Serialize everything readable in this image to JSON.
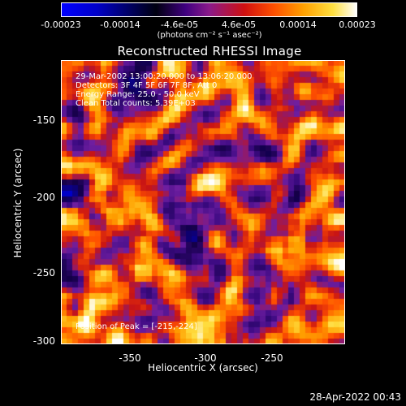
{
  "colorbar": {
    "ticks": [
      "-0.00023",
      "-0.00014",
      "-4.6e-05",
      "4.6e-05",
      "0.00014",
      "0.00023"
    ],
    "unit_label": "(photons cm⁻² s⁻¹ asec⁻²)"
  },
  "info": {
    "time_range": "29-Mar-2002 13:00:20.000 to 13:06:20.000",
    "detectors": "Detectors: 3F 4F 5F 6F 7F 8F, Att 0",
    "energy_range": "Energy Range: 25.0 - 50.0 keV",
    "clean": "Clean     Total counts: 5.39E+03",
    "peak": "Position of Peak = [-215,-224]"
  },
  "timestamp": "28-Apr-2022 00:43",
  "chart_data": {
    "type": "heatmap",
    "title": "Reconstructed RHESSI Image",
    "xlabel": "Heliocentric X (arcsec)",
    "ylabel": "Heliocentric Y (arcsec)",
    "xlim": [
      -395,
      -205
    ],
    "ylim": [
      -303,
      -113
    ],
    "xticks": [
      -350,
      -300,
      -250
    ],
    "yticks": [
      -150,
      -200,
      -250,
      -300
    ],
    "colorbar_range": [
      -0.00023,
      0.00023
    ],
    "colormap": [
      "#0000ff",
      "#0000c8",
      "#000010",
      "#400080",
      "#8a1a8a",
      "#d01010",
      "#ff5000",
      "#ffa000",
      "#ffe040",
      "#ffffff"
    ],
    "peak_position": [
      -215,
      -224
    ]
  }
}
